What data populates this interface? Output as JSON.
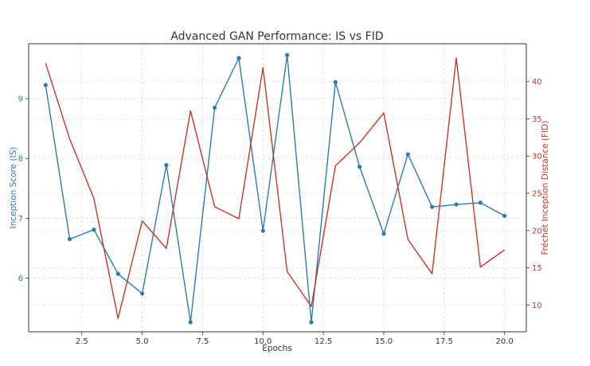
{
  "chart_data": {
    "type": "line",
    "title": "Advanced GAN Performance: IS vs FID",
    "xlabel": "Epochs",
    "y1label": "Inception Score (IS)",
    "y2label": "Fréchet Inception Distance (FID)",
    "xlim": [
      0.3,
      20.9
    ],
    "y1lim": [
      5.1,
      9.92
    ],
    "y2lim": [
      6.4,
      45.1
    ],
    "xticks": [
      2.5,
      5.0,
      7.5,
      10.0,
      12.5,
      15.0,
      17.5,
      20.0
    ],
    "xtick_labels": [
      "2.5",
      "5.0",
      "7.5",
      "10.0",
      "12.5",
      "15.0",
      "17.5",
      "20.0"
    ],
    "y1ticks": [
      6,
      7,
      8,
      9
    ],
    "y1tick_labels": [
      "6",
      "7",
      "8",
      "9"
    ],
    "y2ticks": [
      10,
      15,
      20,
      25,
      30,
      35,
      40
    ],
    "y2tick_labels": [
      "10",
      "15",
      "20",
      "25",
      "30",
      "35",
      "40"
    ],
    "grid": true,
    "x": [
      1,
      2,
      3,
      4,
      5,
      6,
      7,
      8,
      9,
      10,
      11,
      12,
      13,
      14,
      15,
      16,
      17,
      18,
      19,
      20
    ],
    "series": [
      {
        "name": "Inception Score (IS)",
        "axis": "left",
        "color": "#2f7bab",
        "marker": "circle",
        "values": [
          9.23,
          6.65,
          6.81,
          6.07,
          5.74,
          7.89,
          5.26,
          8.85,
          9.68,
          6.79,
          9.73,
          5.26,
          9.28,
          7.86,
          6.74,
          8.07,
          7.19,
          7.23,
          7.26,
          7.04
        ]
      },
      {
        "name": "Fréchet Inception Distance (FID)",
        "axis": "right",
        "color": "#c0392b",
        "marker": "none",
        "values": [
          42.5,
          32.3,
          24.3,
          8.2,
          21.3,
          17.6,
          36.1,
          23.2,
          21.6,
          41.9,
          14.5,
          9.8,
          28.7,
          31.8,
          35.8,
          18.8,
          14.2,
          43.2,
          15.1,
          17.4
        ]
      }
    ]
  }
}
